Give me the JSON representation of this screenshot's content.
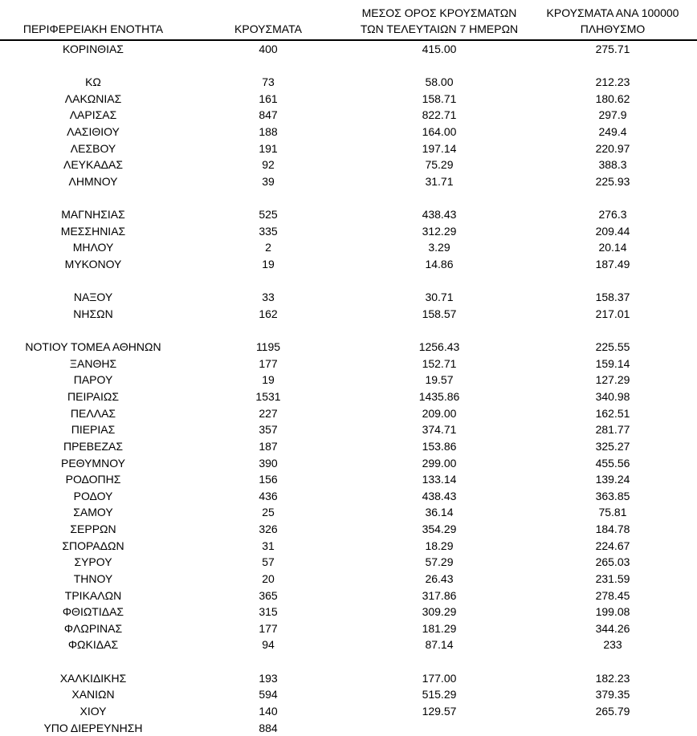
{
  "page": {
    "background_color": "#ffffff",
    "text_color": "#000000",
    "header_rule_color": "#000000"
  },
  "table": {
    "columns": [
      {
        "line1": "ΠΕΡΙΦΕΡΕΙΑΚΗ ΕΝΟΤΗΤΑ",
        "line2": ""
      },
      {
        "line1": "ΚΡΟΥΣΜΑΤΑ",
        "line2": ""
      },
      {
        "line1": "ΜΕΣΟΣ ΟΡΟΣ ΚΡΟΥΣΜΑΤΩΝ",
        "line2": "ΤΩΝ ΤΕΛΕΥΤΑΙΩΝ 7 ΗΜΕΡΩΝ"
      },
      {
        "line1": "ΚΡΟΥΣΜΑΤΑ ΑΝΑ 100000",
        "line2": "ΠΛΗΘΥΣΜΟ"
      }
    ],
    "rows": [
      {
        "region": "ΚΟΡΙΝΘΙΑΣ",
        "cases": "400",
        "avg7": "415.00",
        "per100k": "275.71"
      },
      {
        "spacer": true
      },
      {
        "region": "ΚΩ",
        "cases": "73",
        "avg7": "58.00",
        "per100k": "212.23"
      },
      {
        "region": "ΛΑΚΩΝΙΑΣ",
        "cases": "161",
        "avg7": "158.71",
        "per100k": "180.62"
      },
      {
        "region": "ΛΑΡΙΣΑΣ",
        "cases": "847",
        "avg7": "822.71",
        "per100k": "297.9"
      },
      {
        "region": "ΛΑΣΙΘΙΟΥ",
        "cases": "188",
        "avg7": "164.00",
        "per100k": "249.4"
      },
      {
        "region": "ΛΕΣΒΟΥ",
        "cases": "191",
        "avg7": "197.14",
        "per100k": "220.97"
      },
      {
        "region": "ΛΕΥΚΑΔΑΣ",
        "cases": "92",
        "avg7": "75.29",
        "per100k": "388.3"
      },
      {
        "region": "ΛΗΜΝΟΥ",
        "cases": "39",
        "avg7": "31.71",
        "per100k": "225.93"
      },
      {
        "spacer": true
      },
      {
        "region": "ΜΑΓΝΗΣΙΑΣ",
        "cases": "525",
        "avg7": "438.43",
        "per100k": "276.3"
      },
      {
        "region": "ΜΕΣΣΗΝΙΑΣ",
        "cases": "335",
        "avg7": "312.29",
        "per100k": "209.44"
      },
      {
        "region": "ΜΗΛΟΥ",
        "cases": "2",
        "avg7": "3.29",
        "per100k": "20.14"
      },
      {
        "region": "ΜΥΚΟΝΟΥ",
        "cases": "19",
        "avg7": "14.86",
        "per100k": "187.49"
      },
      {
        "spacer": true
      },
      {
        "region": "ΝΑΞΟΥ",
        "cases": "33",
        "avg7": "30.71",
        "per100k": "158.37"
      },
      {
        "region": "ΝΗΣΩΝ",
        "cases": "162",
        "avg7": "158.57",
        "per100k": "217.01"
      },
      {
        "spacer": true
      },
      {
        "region": "ΝΟΤΙΟΥ ΤΟΜΕΑ ΑΘΗΝΩΝ",
        "cases": "1195",
        "avg7": "1256.43",
        "per100k": "225.55"
      },
      {
        "region": "ΞΑΝΘΗΣ",
        "cases": "177",
        "avg7": "152.71",
        "per100k": "159.14"
      },
      {
        "region": "ΠΑΡΟΥ",
        "cases": "19",
        "avg7": "19.57",
        "per100k": "127.29"
      },
      {
        "region": "ΠΕΙΡΑΙΩΣ",
        "cases": "1531",
        "avg7": "1435.86",
        "per100k": "340.98"
      },
      {
        "region": "ΠΕΛΛΑΣ",
        "cases": "227",
        "avg7": "209.00",
        "per100k": "162.51"
      },
      {
        "region": "ΠΙΕΡΙΑΣ",
        "cases": "357",
        "avg7": "374.71",
        "per100k": "281.77"
      },
      {
        "region": "ΠΡΕΒΕΖΑΣ",
        "cases": "187",
        "avg7": "153.86",
        "per100k": "325.27"
      },
      {
        "region": "ΡΕΘΥΜΝΟΥ",
        "cases": "390",
        "avg7": "299.00",
        "per100k": "455.56"
      },
      {
        "region": "ΡΟΔΟΠΗΣ",
        "cases": "156",
        "avg7": "133.14",
        "per100k": "139.24"
      },
      {
        "region": "ΡΟΔΟΥ",
        "cases": "436",
        "avg7": "438.43",
        "per100k": "363.85"
      },
      {
        "region": "ΣΑΜΟΥ",
        "cases": "25",
        "avg7": "36.14",
        "per100k": "75.81"
      },
      {
        "region": "ΣΕΡΡΩΝ",
        "cases": "326",
        "avg7": "354.29",
        "per100k": "184.78"
      },
      {
        "region": "ΣΠΟΡΑΔΩΝ",
        "cases": "31",
        "avg7": "18.29",
        "per100k": "224.67"
      },
      {
        "region": "ΣΥΡΟΥ",
        "cases": "57",
        "avg7": "57.29",
        "per100k": "265.03"
      },
      {
        "region": "ΤΗΝΟΥ",
        "cases": "20",
        "avg7": "26.43",
        "per100k": "231.59"
      },
      {
        "region": "ΤΡΙΚΑΛΩΝ",
        "cases": "365",
        "avg7": "317.86",
        "per100k": "278.45"
      },
      {
        "region": "ΦΘΙΩΤΙΔΑΣ",
        "cases": "315",
        "avg7": "309.29",
        "per100k": "199.08"
      },
      {
        "region": "ΦΛΩΡΙΝΑΣ",
        "cases": "177",
        "avg7": "181.29",
        "per100k": "344.26"
      },
      {
        "region": "ΦΩΚΙΔΑΣ",
        "cases": "94",
        "avg7": "87.14",
        "per100k": "233"
      },
      {
        "spacer": true
      },
      {
        "region": "ΧΑΛΚΙΔΙΚΗΣ",
        "cases": "193",
        "avg7": "177.00",
        "per100k": "182.23"
      },
      {
        "region": "ΧΑΝΙΩΝ",
        "cases": "594",
        "avg7": "515.29",
        "per100k": "379.35"
      },
      {
        "region": "ΧΙΟΥ",
        "cases": "140",
        "avg7": "129.57",
        "per100k": "265.79"
      },
      {
        "region": "ΥΠΟ ΔΙΕΡΕΥΝΗΣΗ",
        "cases": "884",
        "avg7": "",
        "per100k": ""
      }
    ]
  }
}
